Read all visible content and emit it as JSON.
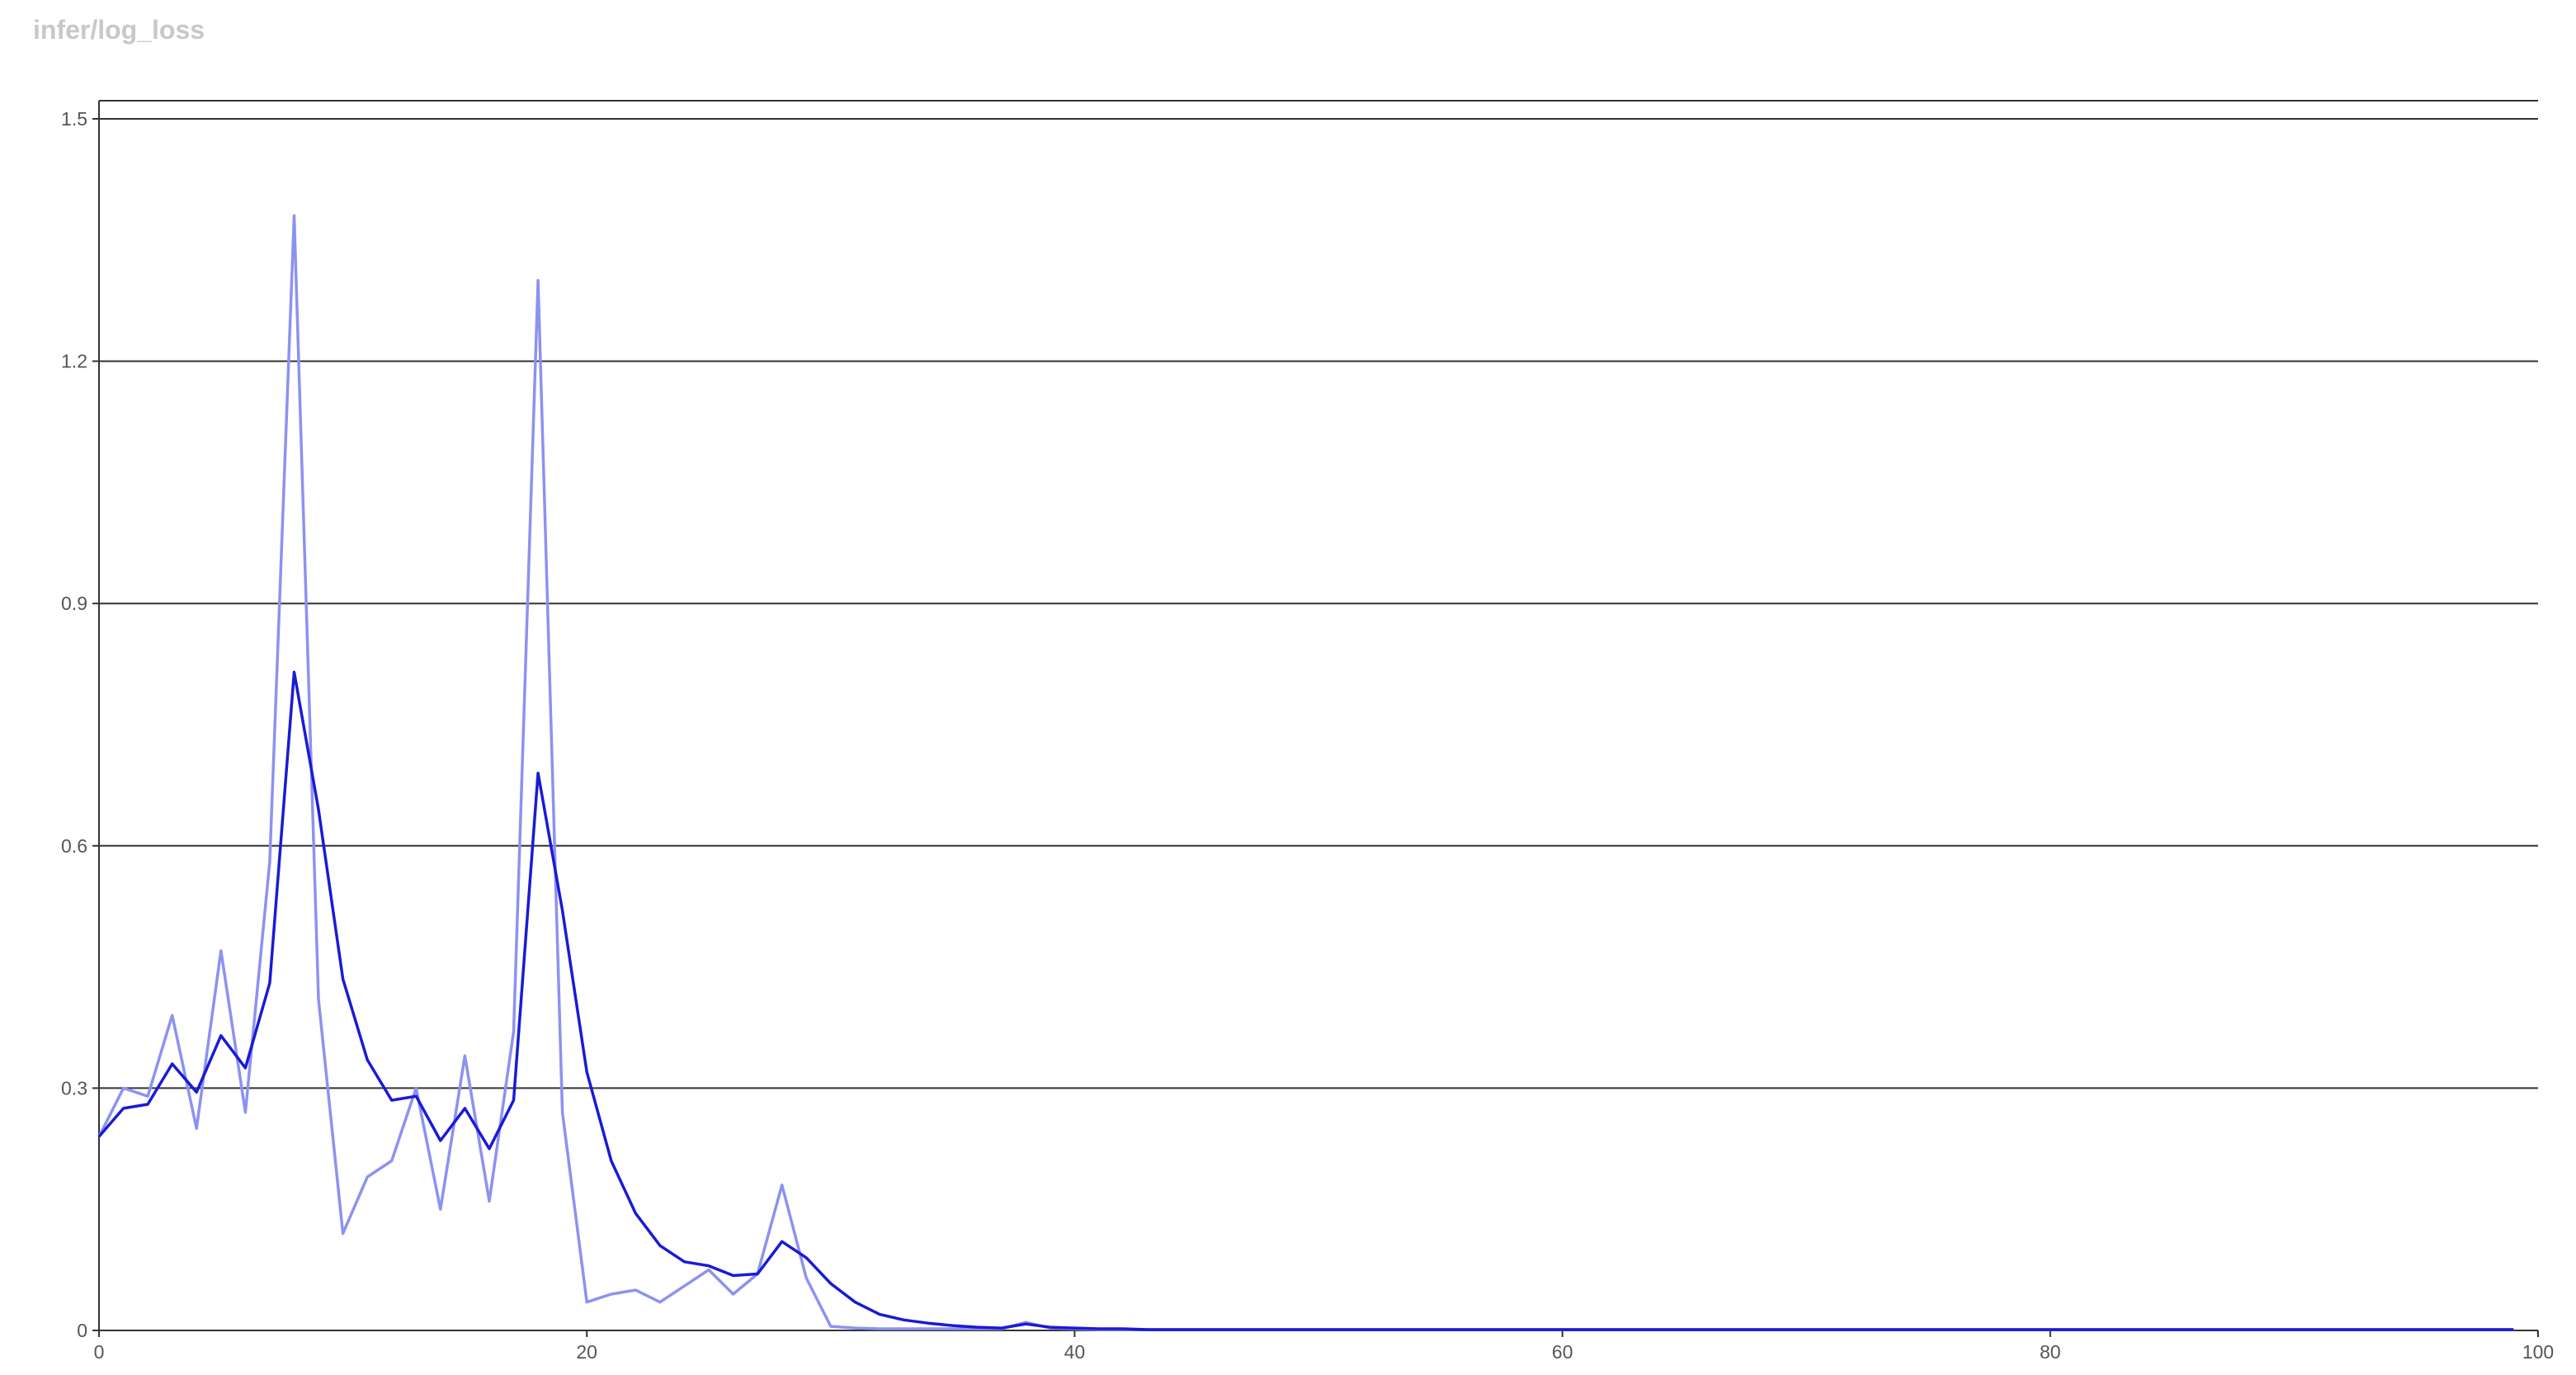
{
  "chart_data": {
    "type": "line",
    "title": "infer/log_loss",
    "xlabel": "",
    "ylabel": "",
    "xlim": [
      0,
      100
    ],
    "ylim": [
      0,
      1.5
    ],
    "x_ticks": [
      0,
      20,
      40,
      60,
      80,
      100
    ],
    "y_ticks": [
      0,
      0.3,
      0.6,
      0.9,
      1.2,
      1.5
    ],
    "grid": true,
    "series": [
      {
        "role": "raw",
        "color": "#8c92f0",
        "x": [
          0,
          1,
          2,
          3,
          4,
          5,
          6,
          7,
          8,
          9,
          10,
          11,
          12,
          13,
          14,
          15,
          16,
          17,
          18,
          19,
          20,
          21,
          22,
          23,
          24,
          25,
          26,
          27,
          28,
          29,
          30,
          31,
          32,
          33,
          34,
          35,
          36,
          37,
          38,
          39,
          40,
          41,
          42,
          43,
          44,
          45,
          46,
          47,
          48,
          49,
          50,
          51,
          52,
          53,
          54,
          55,
          56,
          57,
          58,
          59,
          60,
          61,
          62,
          63,
          64,
          65,
          66,
          67,
          68,
          69,
          70,
          71,
          72,
          73,
          74,
          75,
          76,
          77,
          78,
          79,
          80,
          81,
          82,
          83,
          84,
          85,
          86,
          87,
          88,
          89,
          90,
          91,
          92,
          93,
          94,
          95,
          96,
          97,
          98,
          99
        ],
        "y": [
          0.24,
          0.3,
          0.29,
          0.39,
          0.25,
          0.47,
          0.27,
          0.58,
          1.38,
          0.41,
          0.12,
          0.19,
          0.21,
          0.3,
          0.15,
          0.34,
          0.16,
          0.37,
          1.3,
          0.27,
          0.035,
          0.045,
          0.05,
          0.035,
          0.055,
          0.075,
          0.045,
          0.07,
          0.18,
          0.065,
          0.005,
          0.003,
          0.002,
          0.002,
          0.002,
          0.002,
          0.002,
          0.002,
          0.01,
          0.003,
          0.002,
          0.001,
          0.001,
          0.001,
          0.001,
          0.001,
          0.001,
          0.001,
          0.001,
          0.001,
          0.001,
          0.001,
          0.001,
          0.001,
          0.001,
          0.001,
          0.001,
          0.001,
          0.001,
          0.001,
          0.001,
          0.001,
          0.001,
          0.001,
          0.001,
          0.001,
          0.001,
          0.001,
          0.001,
          0.001,
          0.001,
          0.001,
          0.001,
          0.001,
          0.001,
          0.001,
          0.001,
          0.001,
          0.001,
          0.001,
          0.001,
          0.001,
          0.001,
          0.001,
          0.001,
          0.001,
          0.001,
          0.001,
          0.001,
          0.001,
          0.001,
          0.001,
          0.001,
          0.001,
          0.001,
          0.001,
          0.001,
          0.001,
          0.001,
          0.001
        ]
      },
      {
        "role": "smoothed",
        "color": "#1a1ad6",
        "x": [
          0,
          1,
          2,
          3,
          4,
          5,
          6,
          7,
          8,
          9,
          10,
          11,
          12,
          13,
          14,
          15,
          16,
          17,
          18,
          19,
          20,
          21,
          22,
          23,
          24,
          25,
          26,
          27,
          28,
          29,
          30,
          31,
          32,
          33,
          34,
          35,
          36,
          37,
          38,
          39,
          40,
          41,
          42,
          43,
          44,
          45,
          46,
          47,
          48,
          49,
          50,
          51,
          52,
          53,
          54,
          55,
          56,
          57,
          58,
          59,
          60,
          61,
          62,
          63,
          64,
          65,
          66,
          67,
          68,
          69,
          70,
          71,
          72,
          73,
          74,
          75,
          76,
          77,
          78,
          79,
          80,
          81,
          82,
          83,
          84,
          85,
          86,
          87,
          88,
          89,
          90,
          91,
          92,
          93,
          94,
          95,
          96,
          97,
          98,
          99
        ],
        "y": [
          0.24,
          0.275,
          0.28,
          0.33,
          0.295,
          0.365,
          0.325,
          0.43,
          0.815,
          0.645,
          0.435,
          0.335,
          0.285,
          0.29,
          0.235,
          0.275,
          0.225,
          0.285,
          0.69,
          0.52,
          0.32,
          0.21,
          0.145,
          0.105,
          0.085,
          0.08,
          0.068,
          0.07,
          0.11,
          0.09,
          0.058,
          0.035,
          0.02,
          0.013,
          0.009,
          0.006,
          0.004,
          0.003,
          0.008,
          0.004,
          0.003,
          0.002,
          0.002,
          0.001,
          0.001,
          0.001,
          0.001,
          0.001,
          0.001,
          0.001,
          0.001,
          0.001,
          0.001,
          0.001,
          0.001,
          0.001,
          0.001,
          0.001,
          0.001,
          0.001,
          0.001,
          0.001,
          0.001,
          0.001,
          0.001,
          0.001,
          0.001,
          0.001,
          0.001,
          0.001,
          0.001,
          0.001,
          0.001,
          0.001,
          0.001,
          0.001,
          0.001,
          0.001,
          0.001,
          0.001,
          0.001,
          0.001,
          0.001,
          0.001,
          0.001,
          0.001,
          0.001,
          0.001,
          0.001,
          0.001,
          0.001,
          0.001,
          0.001,
          0.001,
          0.001,
          0.001,
          0.001,
          0.001,
          0.001,
          0.001
        ]
      }
    ]
  }
}
